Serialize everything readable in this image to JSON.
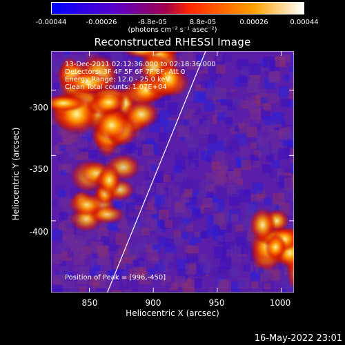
{
  "colorbar": {
    "ticks": [
      "-0.00044",
      "-0.00026",
      "-8.8e-05",
      "8.8e-05",
      "0.00026",
      "0.00044"
    ],
    "unit_label": "(photons cm⁻² s⁻¹ asec⁻²)",
    "colormap": [
      "#0000ff",
      "#5a00c8",
      "#a00050",
      "#ff2800",
      "#ffa000",
      "#ffffff"
    ]
  },
  "chart_data": {
    "type": "heatmap",
    "title": "Reconstructed RHESSI Image",
    "xlabel": "Heliocentric X (arcsec)",
    "ylabel": "Heliocentric Y (arcsec)",
    "xlim": [
      820,
      1010
    ],
    "ylim": [
      -455,
      -270
    ],
    "x_ticks": [
      "850",
      "900",
      "950",
      "1000"
    ],
    "y_ticks": [
      "-300",
      "-350",
      "-400"
    ],
    "color_range": [
      -0.00044,
      0.00044
    ],
    "limb_line": [
      [
        864,
        -455
      ],
      [
        941,
        -270
      ]
    ],
    "bright_regions": [
      {
        "x": 845,
        "y": -300,
        "intensity": 0.9
      },
      {
        "x": 880,
        "y": -320,
        "intensity": 0.85
      },
      {
        "x": 905,
        "y": -280,
        "intensity": 0.7
      },
      {
        "x": 860,
        "y": -380,
        "intensity": 0.6
      },
      {
        "x": 1000,
        "y": -420,
        "intensity": 0.85
      }
    ],
    "annotations": [
      "13-Dec-2011 02:12:36.000 to 02:18:36.000",
      "Detectors: 3F 4F 5F 6F 7F 8F, Att 0",
      "Energy Range: 12.0 - 25.0 keV",
      "Clean    Total counts: 1.07E+04"
    ],
    "peak_label": "Position of Peak = [996,-450]"
  },
  "footer": "16-May-2022 23:01"
}
